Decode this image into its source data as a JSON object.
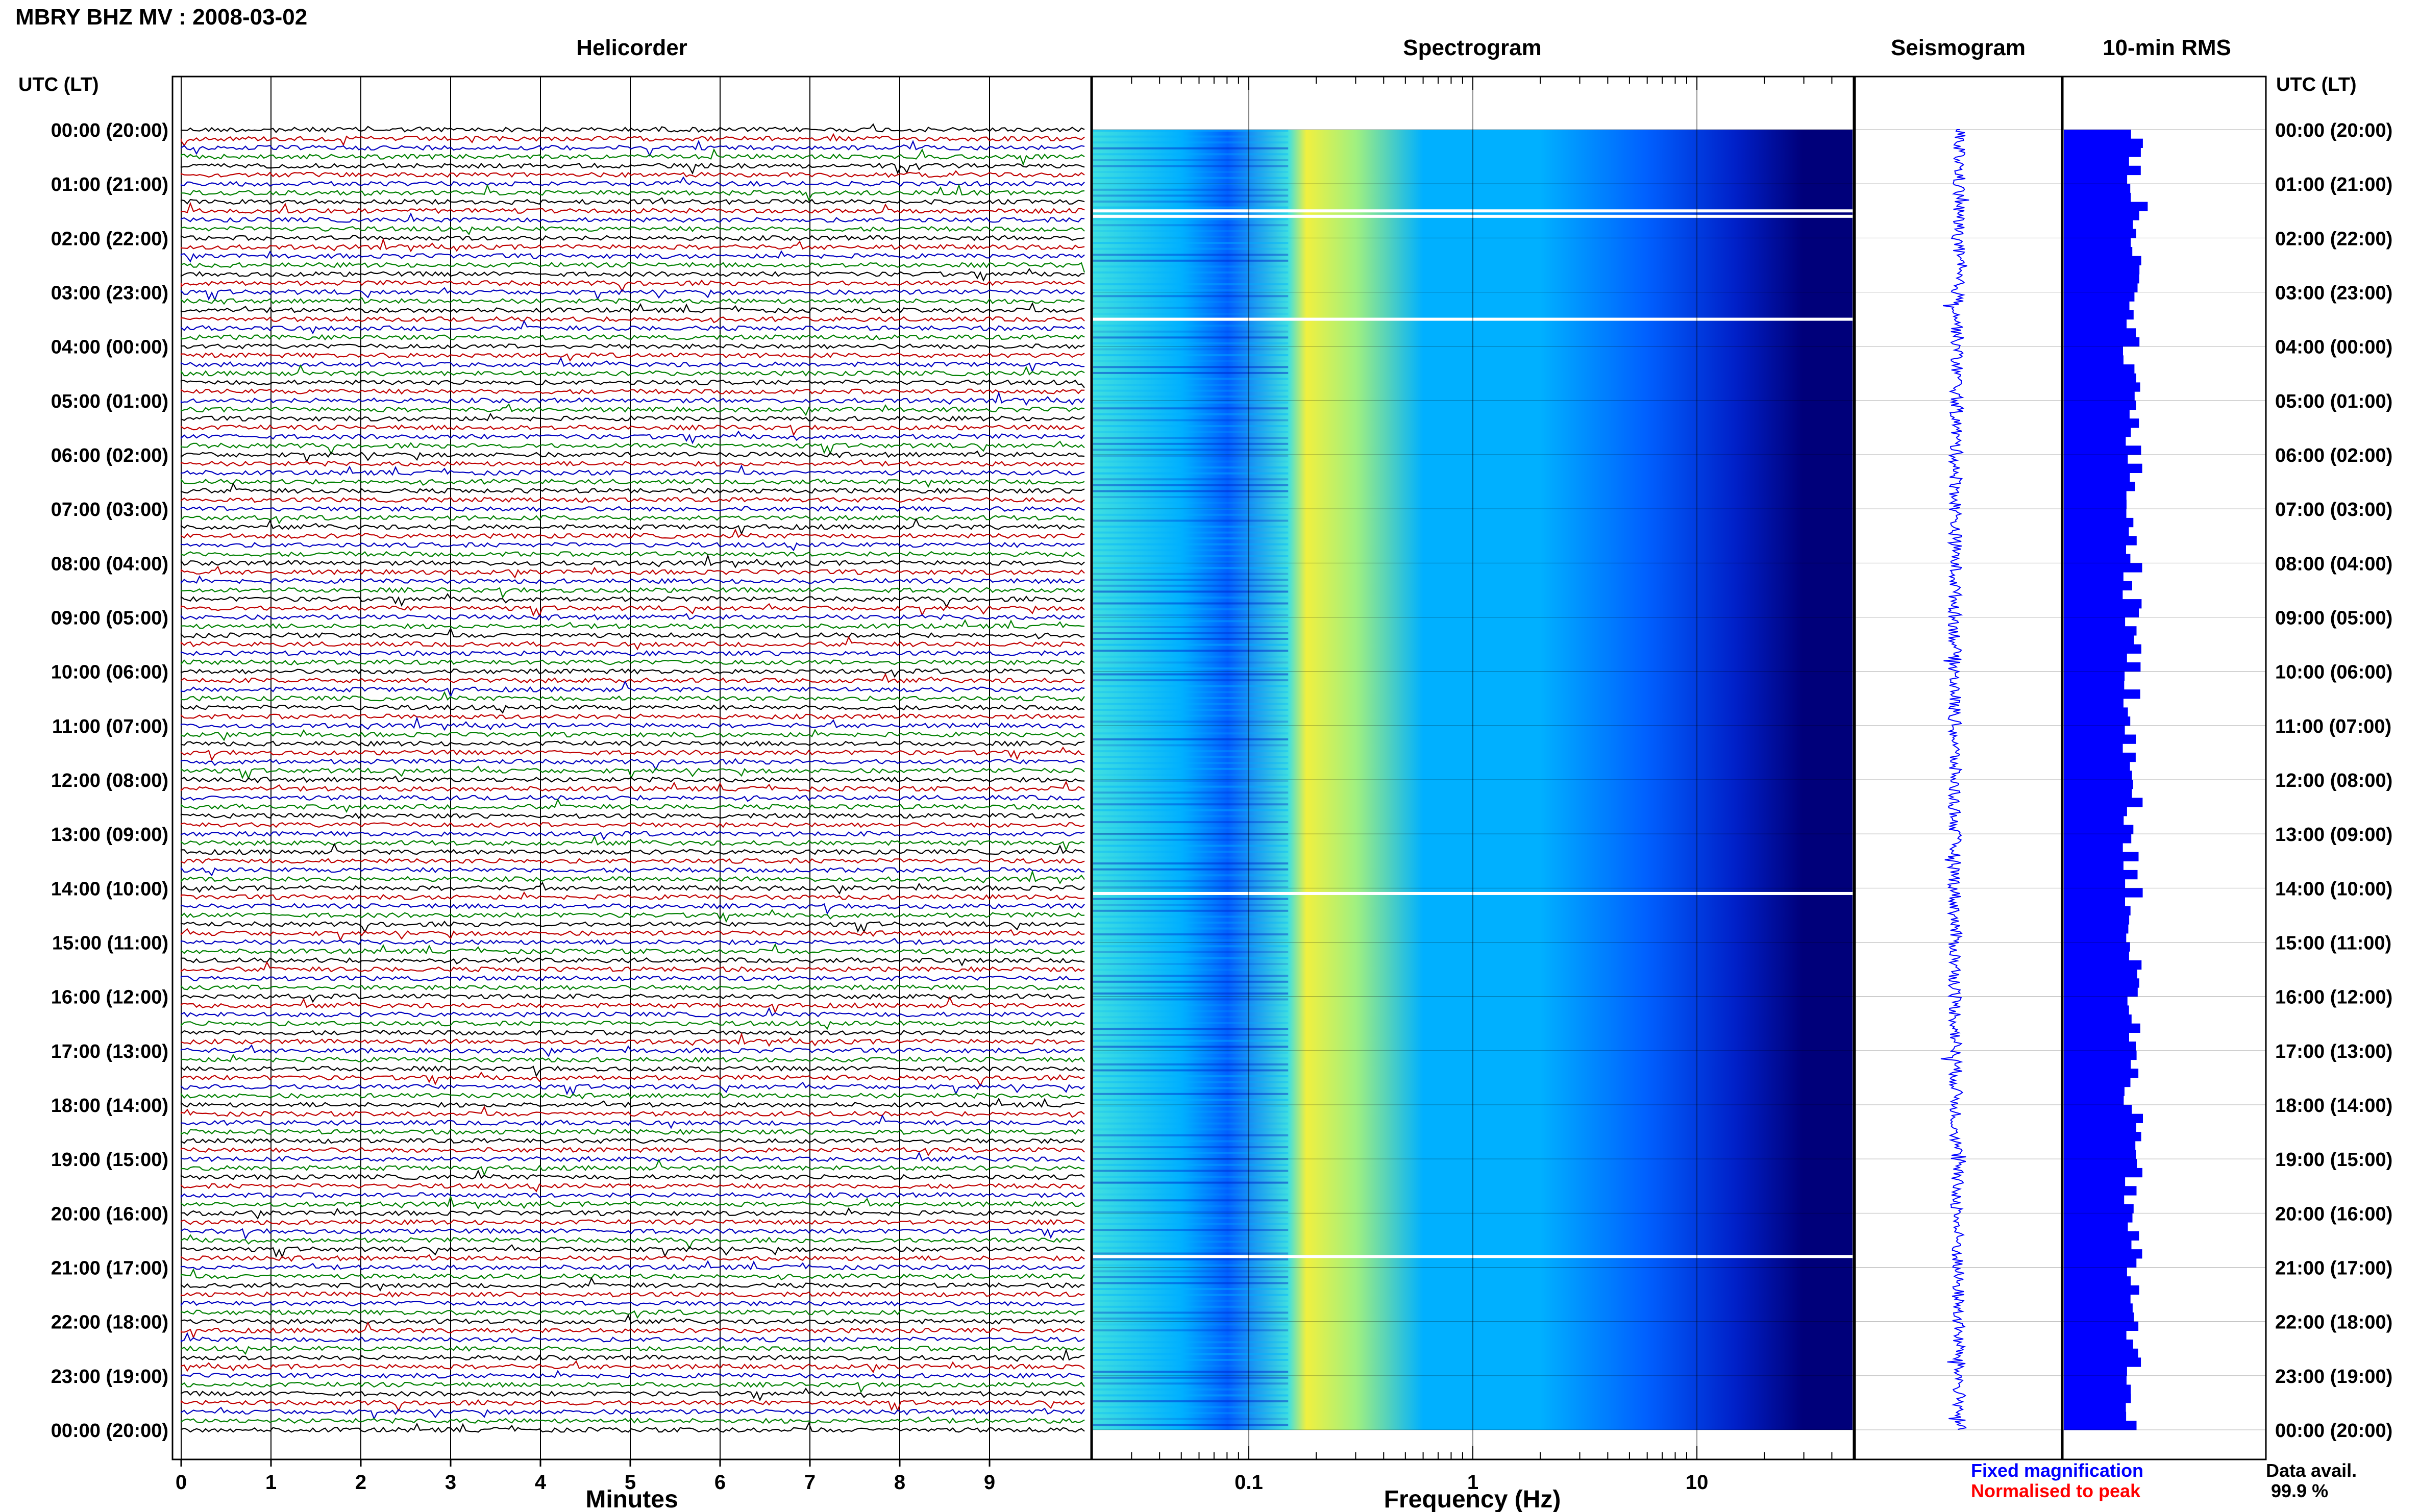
{
  "header": {
    "title": "MBRY BHZ MV : 2008-03-02",
    "utc_left": "UTC (LT)",
    "utc_right": "UTC (LT)"
  },
  "panels": {
    "helicorder": "Helicorder",
    "spectrogram": "Spectrogram",
    "seismogram": "Seismogram",
    "rms": "10-min RMS"
  },
  "chart_data": [
    {
      "type": "line",
      "title": "Helicorder",
      "xlabel": "Minutes",
      "x_ticks": [
        "0",
        "1",
        "2",
        "3",
        "4",
        "5",
        "6",
        "7",
        "8",
        "9"
      ],
      "xlim": [
        0,
        10
      ],
      "rows_per_hour": 6,
      "trace_colors": [
        "#000000",
        "#c00000",
        "#0000c0",
        "#008000"
      ],
      "y_ticks": [
        "00:00 (20:00)",
        "01:00 (21:00)",
        "02:00 (22:00)",
        "03:00 (23:00)",
        "04:00 (00:00)",
        "05:00 (01:00)",
        "06:00 (02:00)",
        "07:00 (03:00)",
        "08:00 (04:00)",
        "09:00 (05:00)",
        "10:00 (06:00)",
        "11:00 (07:00)",
        "12:00 (08:00)",
        "13:00 (09:00)",
        "14:00 (10:00)",
        "15:00 (11:00)",
        "16:00 (12:00)",
        "17:00 (13:00)",
        "18:00 (14:00)",
        "19:00 (15:00)",
        "20:00 (16:00)",
        "21:00 (17:00)",
        "22:00 (18:00)",
        "23:00 (19:00)",
        "00:00 (20:00)"
      ]
    },
    {
      "type": "heatmap",
      "title": "Spectrogram",
      "xlabel": "Frequency (Hz)",
      "x_scale": "log",
      "x_ticks": [
        "0.1",
        "1",
        "10"
      ],
      "xlim": [
        0.02,
        50
      ],
      "peak_band_hz": [
        0.18,
        0.3
      ],
      "data_gaps_utc_hours": [
        1.5,
        1.6,
        3.5,
        14.1,
        20.8
      ],
      "colors": [
        "#00007a",
        "#0020c8",
        "#0060ff",
        "#00b0ff",
        "#40e0e0",
        "#a0f080",
        "#f0f040"
      ]
    },
    {
      "type": "line",
      "title": "Seismogram",
      "color": "#0000ff"
    },
    {
      "type": "bar",
      "title": "10-min RMS",
      "color": "#0000ff",
      "bins_per_hour": 6
    }
  ],
  "legend": {
    "fixed": "Fixed magnification",
    "normalised": "Normalised to peak",
    "fixed_color": "#0000ff",
    "normalised_color": "#ff0000"
  },
  "availability": {
    "label": "Data avail.",
    "value": "99.9 %"
  }
}
